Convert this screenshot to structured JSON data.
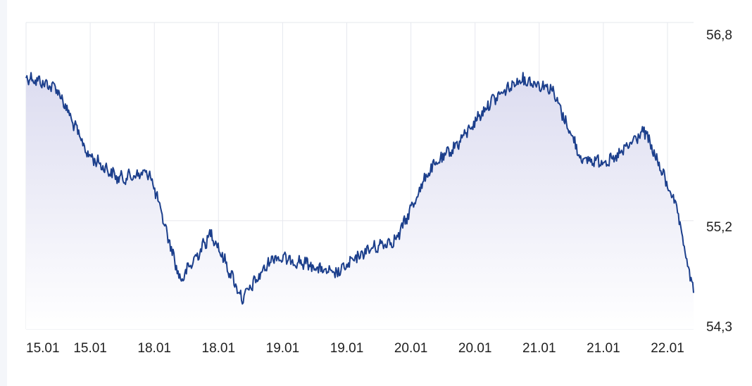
{
  "chart_data": {
    "type": "area",
    "title": "",
    "xlabel": "",
    "ylabel": "",
    "x_tick_labels": [
      "15.01",
      "15.01",
      "18.01",
      "18.01",
      "19.01",
      "19.01",
      "20.01",
      "20.01",
      "21.01",
      "21.01",
      "22.01"
    ],
    "y_tick_labels": [
      "56,8",
      "55,2",
      "54,3"
    ],
    "y_ticks": [
      56.8,
      55.2,
      54.3
    ],
    "ylim": [
      54.3,
      56.8
    ],
    "grid": true,
    "legend": "none",
    "colors": {
      "line": "#1c3f8c",
      "fill_top": "#dcdcf0",
      "fill_bottom": "#ffffff",
      "grid": "#e6e8ee"
    },
    "series": [
      {
        "x": [
          0,
          0.5,
          1,
          1.5,
          2,
          2.5,
          3,
          3.5,
          4,
          4.5,
          5,
          5.5,
          6,
          6.5,
          7,
          7.5,
          8,
          8.5,
          9,
          9.5,
          10,
          10.5,
          10.8
        ],
        "values": [
          56.4,
          56.3,
          55.75,
          55.55,
          55.6,
          54.7,
          55.1,
          54.55,
          54.9,
          54.85,
          54.75,
          54.95,
          55.05,
          55.6,
          55.85,
          56.18,
          56.38,
          56.3,
          55.7,
          55.7,
          55.95,
          55.35,
          54.6
        ]
      }
    ]
  }
}
